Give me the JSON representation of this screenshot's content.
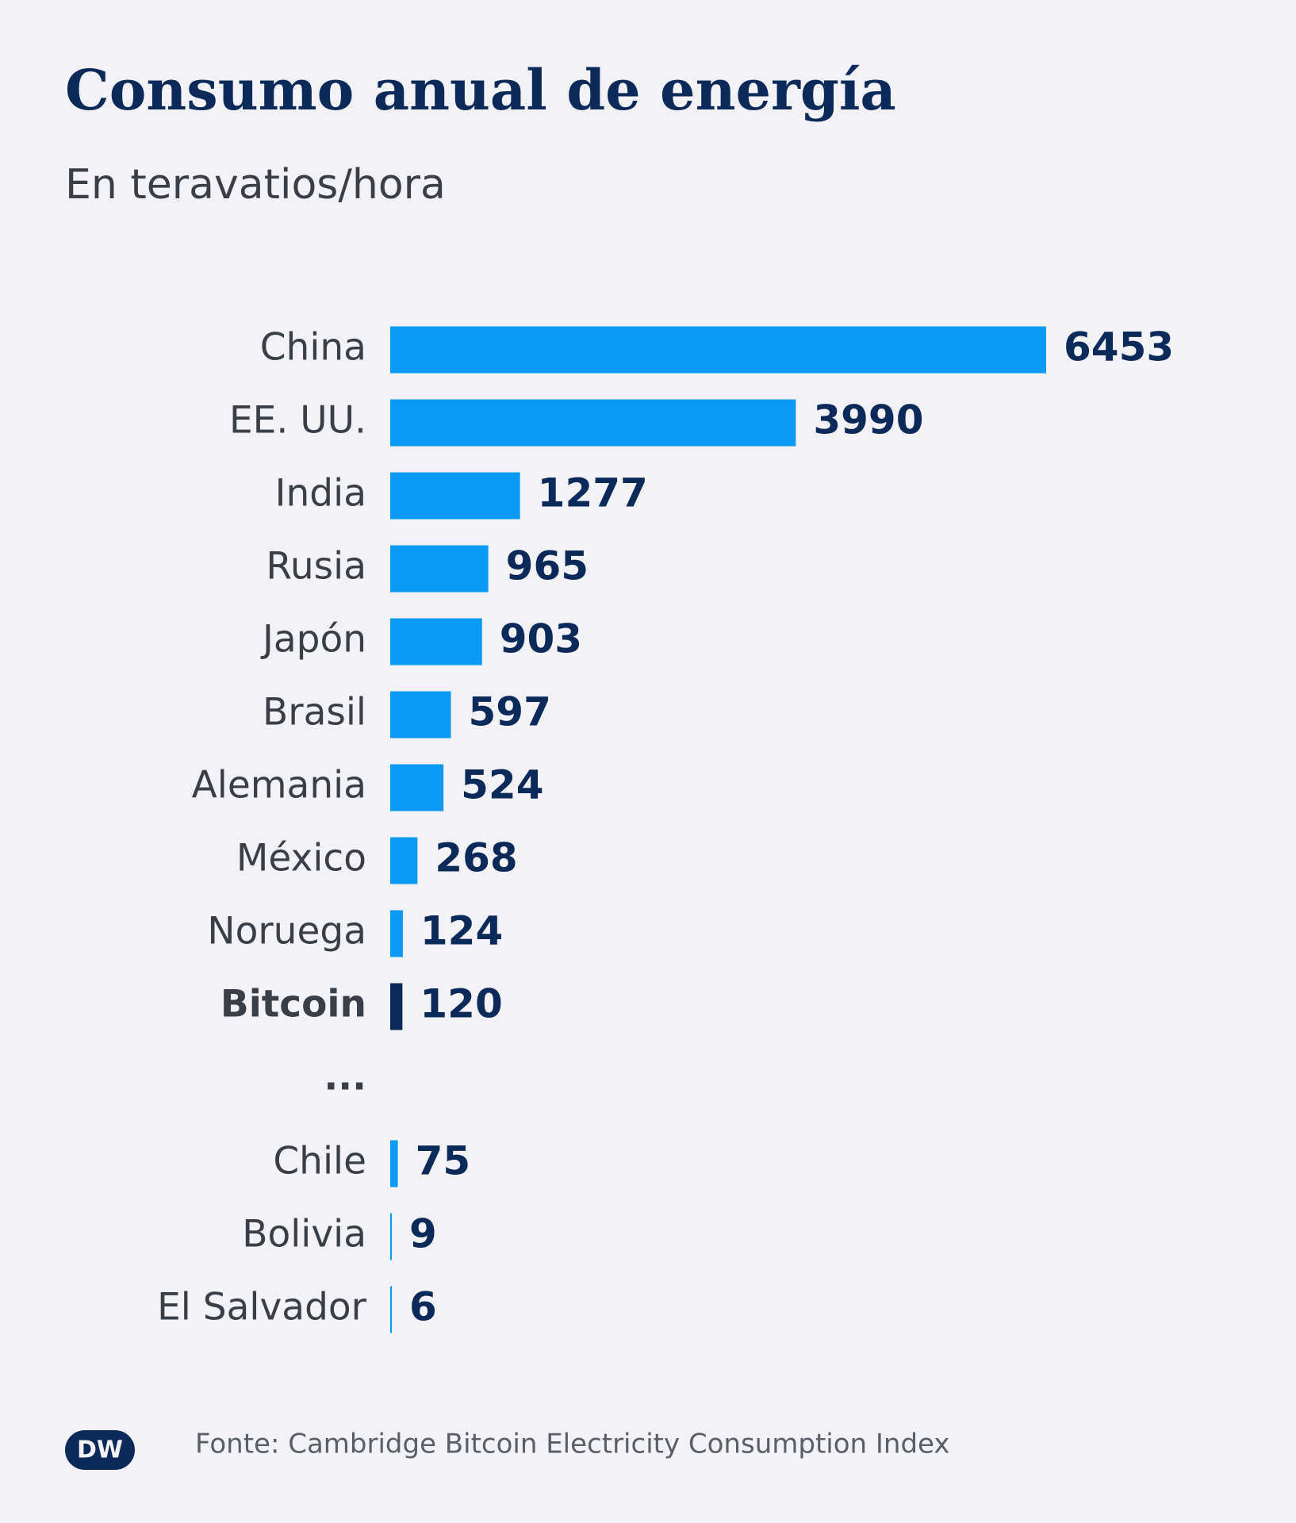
{
  "chart_data": {
    "type": "bar",
    "orientation": "horizontal",
    "title": "Consumo anual de energía",
    "subtitle": "En teravatios/hora",
    "categories": [
      "China",
      "EE. UU.",
      "India",
      "Rusia",
      "Japón",
      "Brasil",
      "Alemania",
      "México",
      "Noruega",
      "Bitcoin",
      "...",
      "Chile",
      "Bolivia",
      "El Salvador"
    ],
    "values": [
      6453,
      3990,
      1277,
      965,
      903,
      597,
      524,
      268,
      124,
      120,
      null,
      75,
      9,
      6
    ],
    "color": "#0a9af5",
    "colors": [
      "#0a9af5",
      "#0a9af5",
      "#0a9af5",
      "#0a9af5",
      "#0a9af5",
      "#0a9af5",
      "#0a9af5",
      "#0a9af5",
      "#0a9af5",
      "#0b2a59",
      null,
      "#0a9af5",
      "#0a9af5",
      "#0a9af5"
    ],
    "source": "Fonte: Cambridge Bitcoin Electricity Consumption Index",
    "logo": "DW"
  }
}
